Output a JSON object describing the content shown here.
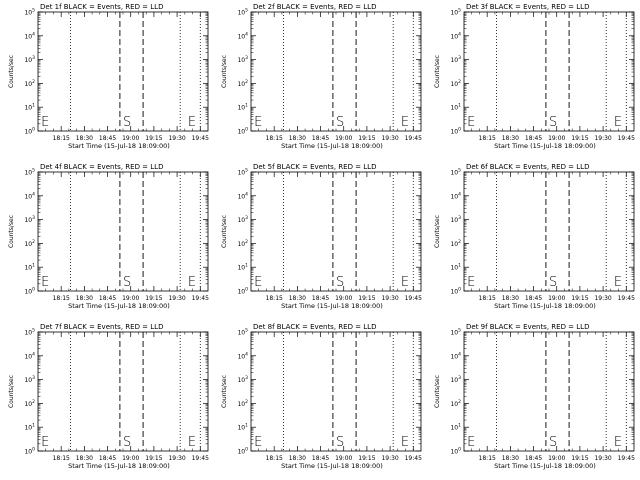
{
  "layout": {
    "rows": 3,
    "cols": 3
  },
  "chart_data": [
    {
      "type": "line",
      "title": "Det 1f BLACK = Events, RED = LLD",
      "xlabel": "Start Time (15-Jul-18 18:09:00)",
      "ylabel": "Counts/sec",
      "x_ticks": [
        "18:15",
        "18:30",
        "18:45",
        "19:00",
        "19:15",
        "19:30",
        "19:45"
      ],
      "x_tick_values_min": [
        15,
        30,
        45,
        60,
        75,
        90,
        105
      ],
      "xlim_min": [
        0,
        110
      ],
      "y_ticks": [
        "10^0",
        "10^1",
        "10^2",
        "10^3",
        "10^4",
        "10^5"
      ],
      "ylim": [
        1,
        100000
      ],
      "yscale": "log",
      "dashed_lines_min": [
        53,
        68
      ],
      "dotted_lines_min": [
        21,
        92,
        105
      ],
      "markers": [
        {
          "label": "E",
          "x_min": 2
        },
        {
          "label": "S",
          "x_min": 55
        },
        {
          "label": "E",
          "x_min": 97
        }
      ],
      "series": []
    },
    {
      "type": "line",
      "title": "Det 2f BLACK = Events, RED = LLD",
      "xlabel": "Start Time (15-Jul-18 18:09:00)",
      "ylabel": "Counts/sec",
      "x_ticks": [
        "18:15",
        "18:30",
        "18:45",
        "19:00",
        "19:15",
        "19:30",
        "19:45"
      ],
      "x_tick_values_min": [
        15,
        30,
        45,
        60,
        75,
        90,
        105
      ],
      "xlim_min": [
        0,
        110
      ],
      "y_ticks": [
        "10^0",
        "10^1",
        "10^2",
        "10^3",
        "10^4",
        "10^5"
      ],
      "ylim": [
        1,
        100000
      ],
      "yscale": "log",
      "dashed_lines_min": [
        53,
        68
      ],
      "dotted_lines_min": [
        21,
        92,
        105
      ],
      "markers": [
        {
          "label": "E",
          "x_min": 2
        },
        {
          "label": "S",
          "x_min": 55
        },
        {
          "label": "E",
          "x_min": 97
        }
      ],
      "series": []
    },
    {
      "type": "line",
      "title": "Det 3f BLACK = Events, RED = LLD",
      "xlabel": "Start Time (15-Jul-18 18:09:00)",
      "ylabel": "Counts/sec",
      "x_ticks": [
        "18:15",
        "18:30",
        "18:45",
        "19:00",
        "19:15",
        "19:30",
        "19:45"
      ],
      "x_tick_values_min": [
        15,
        30,
        45,
        60,
        75,
        90,
        105
      ],
      "xlim_min": [
        0,
        110
      ],
      "y_ticks": [
        "10^0",
        "10^1",
        "10^2",
        "10^3",
        "10^4",
        "10^5"
      ],
      "ylim": [
        1,
        100000
      ],
      "yscale": "log",
      "dashed_lines_min": [
        53,
        68
      ],
      "dotted_lines_min": [
        21,
        92,
        105
      ],
      "markers": [
        {
          "label": "E",
          "x_min": 2
        },
        {
          "label": "S",
          "x_min": 55
        },
        {
          "label": "E",
          "x_min": 97
        }
      ],
      "series": []
    },
    {
      "type": "line",
      "title": "Det 4f BLACK = Events, RED = LLD",
      "xlabel": "Start Time (15-Jul-18 18:09:00)",
      "ylabel": "Counts/sec",
      "x_ticks": [
        "18:15",
        "18:30",
        "18:45",
        "19:00",
        "19:15",
        "19:30",
        "19:45"
      ],
      "x_tick_values_min": [
        15,
        30,
        45,
        60,
        75,
        90,
        105
      ],
      "xlim_min": [
        0,
        110
      ],
      "y_ticks": [
        "10^0",
        "10^1",
        "10^2",
        "10^3",
        "10^4",
        "10^5"
      ],
      "ylim": [
        1,
        100000
      ],
      "yscale": "log",
      "dashed_lines_min": [
        53,
        68
      ],
      "dotted_lines_min": [
        21,
        92,
        105
      ],
      "markers": [
        {
          "label": "E",
          "x_min": 2
        },
        {
          "label": "S",
          "x_min": 55
        },
        {
          "label": "E",
          "x_min": 97
        }
      ],
      "series": []
    },
    {
      "type": "line",
      "title": "Det 5f BLACK = Events, RED = LLD",
      "xlabel": "Start Time (15-Jul-18 18:09:00)",
      "ylabel": "Counts/sec",
      "x_ticks": [
        "18:15",
        "18:30",
        "18:45",
        "19:00",
        "19:15",
        "19:30",
        "19:45"
      ],
      "x_tick_values_min": [
        15,
        30,
        45,
        60,
        75,
        90,
        105
      ],
      "xlim_min": [
        0,
        110
      ],
      "y_ticks": [
        "10^0",
        "10^1",
        "10^2",
        "10^3",
        "10^4",
        "10^5"
      ],
      "ylim": [
        1,
        100000
      ],
      "yscale": "log",
      "dashed_lines_min": [
        53,
        68
      ],
      "dotted_lines_min": [
        21,
        92,
        105
      ],
      "markers": [
        {
          "label": "E",
          "x_min": 2
        },
        {
          "label": "S",
          "x_min": 55
        },
        {
          "label": "E",
          "x_min": 97
        }
      ],
      "series": []
    },
    {
      "type": "line",
      "title": "Det 6f BLACK = Events, RED = LLD",
      "xlabel": "Start Time (15-Jul-18 18:09:00)",
      "ylabel": "Counts/sec",
      "x_ticks": [
        "18:15",
        "18:30",
        "18:45",
        "19:00",
        "19:15",
        "19:30",
        "19:45"
      ],
      "x_tick_values_min": [
        15,
        30,
        45,
        60,
        75,
        90,
        105
      ],
      "xlim_min": [
        0,
        110
      ],
      "y_ticks": [
        "10^0",
        "10^1",
        "10^2",
        "10^3",
        "10^4",
        "10^5"
      ],
      "ylim": [
        1,
        100000
      ],
      "yscale": "log",
      "dashed_lines_min": [
        53,
        68
      ],
      "dotted_lines_min": [
        21,
        92,
        105
      ],
      "markers": [
        {
          "label": "E",
          "x_min": 2
        },
        {
          "label": "S",
          "x_min": 55
        },
        {
          "label": "E",
          "x_min": 97
        }
      ],
      "series": []
    },
    {
      "type": "line",
      "title": "Det 7f BLACK = Events, RED = LLD",
      "xlabel": "Start Time (15-Jul-18 18:09:00)",
      "ylabel": "Counts/sec",
      "x_ticks": [
        "18:15",
        "18:30",
        "18:45",
        "19:00",
        "19:15",
        "19:30",
        "19:45"
      ],
      "x_tick_values_min": [
        15,
        30,
        45,
        60,
        75,
        90,
        105
      ],
      "xlim_min": [
        0,
        110
      ],
      "y_ticks": [
        "10^0",
        "10^1",
        "10^2",
        "10^3",
        "10^4",
        "10^5"
      ],
      "ylim": [
        1,
        100000
      ],
      "yscale": "log",
      "dashed_lines_min": [
        53,
        68
      ],
      "dotted_lines_min": [
        21,
        92,
        105
      ],
      "markers": [
        {
          "label": "E",
          "x_min": 2
        },
        {
          "label": "S",
          "x_min": 55
        },
        {
          "label": "E",
          "x_min": 97
        }
      ],
      "series": []
    },
    {
      "type": "line",
      "title": "Det 8f BLACK = Events, RED = LLD",
      "xlabel": "Start Time (15-Jul-18 18:09:00)",
      "ylabel": "Counts/sec",
      "x_ticks": [
        "18:15",
        "18:30",
        "18:45",
        "19:00",
        "19:15",
        "19:30",
        "19:45"
      ],
      "x_tick_values_min": [
        15,
        30,
        45,
        60,
        75,
        90,
        105
      ],
      "xlim_min": [
        0,
        110
      ],
      "y_ticks": [
        "10^0",
        "10^1",
        "10^2",
        "10^3",
        "10^4",
        "10^5"
      ],
      "ylim": [
        1,
        100000
      ],
      "yscale": "log",
      "dashed_lines_min": [
        53,
        68
      ],
      "dotted_lines_min": [
        21,
        92,
        105
      ],
      "markers": [
        {
          "label": "E",
          "x_min": 2
        },
        {
          "label": "S",
          "x_min": 55
        },
        {
          "label": "E",
          "x_min": 97
        }
      ],
      "series": []
    },
    {
      "type": "line",
      "title": "Det 9f BLACK = Events, RED = LLD",
      "xlabel": "Start Time (15-Jul-18 18:09:00)",
      "ylabel": "Counts/sec",
      "x_ticks": [
        "18:15",
        "18:30",
        "18:45",
        "19:00",
        "19:15",
        "19:30",
        "19:45"
      ],
      "x_tick_values_min": [
        15,
        30,
        45,
        60,
        75,
        90,
        105
      ],
      "xlim_min": [
        0,
        110
      ],
      "y_ticks": [
        "10^0",
        "10^1",
        "10^2",
        "10^3",
        "10^4",
        "10^5"
      ],
      "ylim": [
        1,
        100000
      ],
      "yscale": "log",
      "dashed_lines_min": [
        53,
        68
      ],
      "dotted_lines_min": [
        21,
        92,
        105
      ],
      "markers": [
        {
          "label": "E",
          "x_min": 2
        },
        {
          "label": "S",
          "x_min": 55
        },
        {
          "label": "E",
          "x_min": 97
        }
      ],
      "series": []
    }
  ]
}
